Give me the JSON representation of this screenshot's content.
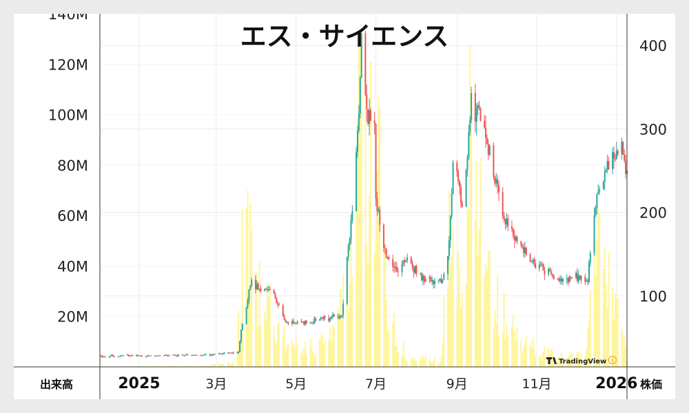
{
  "chart_data": {
    "type": "candlestick",
    "title": "エス・サイエンス",
    "left_axis_label": "出来高",
    "right_axis_label": "株価",
    "left_axis": {
      "ylim": [
        0,
        140000000
      ],
      "ticks": [
        20000000,
        40000000,
        60000000,
        80000000,
        100000000,
        120000000,
        140000000
      ],
      "tick_labels": [
        "20M",
        "40M",
        "60M",
        "80M",
        "100M",
        "120M",
        "140M"
      ]
    },
    "right_axis": {
      "ylim": [
        15,
        438
      ],
      "ticks": [
        100,
        200,
        300,
        400
      ],
      "tick_labels": [
        "100",
        "200",
        "300",
        "400"
      ]
    },
    "x_axis": {
      "start": "2024-12-02",
      "end": "2026-01-09",
      "labels": [
        {
          "date": "2025-01-01",
          "text": "2025",
          "bold": true
        },
        {
          "date": "2025-03-01",
          "text": "3月",
          "bold": false
        },
        {
          "date": "2025-05-01",
          "text": "5月",
          "bold": false
        },
        {
          "date": "2025-07-01",
          "text": "7月",
          "bold": false
        },
        {
          "date": "2025-09-01",
          "text": "9月",
          "bold": false
        },
        {
          "date": "2025-11-01",
          "text": "11月",
          "bold": false
        },
        {
          "date": "2026-01-01",
          "text": "2026",
          "bold": true
        }
      ]
    },
    "colors": {
      "up": "#26a69a",
      "down": "#ef5350",
      "volume": "#fff59d",
      "grid": "#ececec",
      "axis": "#333333"
    },
    "price_path": [
      [
        "2024-12-02",
        28
      ],
      [
        "2025-02-20",
        29
      ],
      [
        "2025-03-18",
        32
      ],
      [
        "2025-03-20",
        60
      ],
      [
        "2025-03-28",
        118
      ],
      [
        "2025-04-02",
        108
      ],
      [
        "2025-04-12",
        110
      ],
      [
        "2025-04-22",
        70
      ],
      [
        "2025-05-10",
        67
      ],
      [
        "2025-05-22",
        73
      ],
      [
        "2025-06-05",
        75
      ],
      [
        "2025-06-13",
        205
      ],
      [
        "2025-06-18",
        320
      ],
      [
        "2025-06-20",
        410
      ],
      [
        "2025-06-24",
        330
      ],
      [
        "2025-06-30",
        300
      ],
      [
        "2025-07-01",
        225
      ],
      [
        "2025-07-03",
        200
      ],
      [
        "2025-07-08",
        150
      ],
      [
        "2025-07-15",
        130
      ],
      [
        "2025-07-25",
        145
      ],
      [
        "2025-08-05",
        120
      ],
      [
        "2025-08-20",
        118
      ],
      [
        "2025-08-25",
        145
      ],
      [
        "2025-08-30",
        280
      ],
      [
        "2025-09-05",
        200
      ],
      [
        "2025-09-12",
        330
      ],
      [
        "2025-09-18",
        320
      ],
      [
        "2025-09-25",
        285
      ],
      [
        "2025-10-05",
        200
      ],
      [
        "2025-10-15",
        170
      ],
      [
        "2025-10-25",
        145
      ],
      [
        "2025-11-10",
        130
      ],
      [
        "2025-11-20",
        115
      ],
      [
        "2025-12-01",
        125
      ],
      [
        "2025-12-10",
        115
      ],
      [
        "2025-12-14",
        190
      ],
      [
        "2025-12-20",
        240
      ],
      [
        "2025-12-28",
        265
      ],
      [
        "2026-01-05",
        275
      ],
      [
        "2026-01-09",
        250
      ]
    ],
    "volume_path": [
      [
        "2024-12-02",
        0.3
      ],
      [
        "2025-02-20",
        0.4
      ],
      [
        "2025-03-14",
        2
      ],
      [
        "2025-03-20",
        30
      ],
      [
        "2025-03-22",
        90
      ],
      [
        "2025-03-28",
        50
      ],
      [
        "2025-04-10",
        30
      ],
      [
        "2025-04-25",
        12
      ],
      [
        "2025-05-15",
        10
      ],
      [
        "2025-06-01",
        15
      ],
      [
        "2025-06-10",
        60
      ],
      [
        "2025-06-16",
        128
      ],
      [
        "2025-06-22",
        120
      ],
      [
        "2025-06-28",
        105
      ],
      [
        "2025-07-02",
        110
      ],
      [
        "2025-07-10",
        25
      ],
      [
        "2025-07-25",
        5
      ],
      [
        "2025-08-20",
        3
      ],
      [
        "2025-08-28",
        85
      ],
      [
        "2025-09-02",
        40
      ],
      [
        "2025-09-10",
        110
      ],
      [
        "2025-09-18",
        100
      ],
      [
        "2025-09-28",
        35
      ],
      [
        "2025-10-20",
        15
      ],
      [
        "2025-11-15",
        5
      ],
      [
        "2025-12-08",
        5
      ],
      [
        "2025-12-14",
        60
      ],
      [
        "2025-12-18",
        78
      ],
      [
        "2025-12-28",
        35
      ],
      [
        "2026-01-09",
        5
      ]
    ]
  },
  "watermark": {
    "brand": "TradingView",
    "logo_icon": "tradingview-logo-icon",
    "badge_icon": "currency-badge-icon"
  }
}
